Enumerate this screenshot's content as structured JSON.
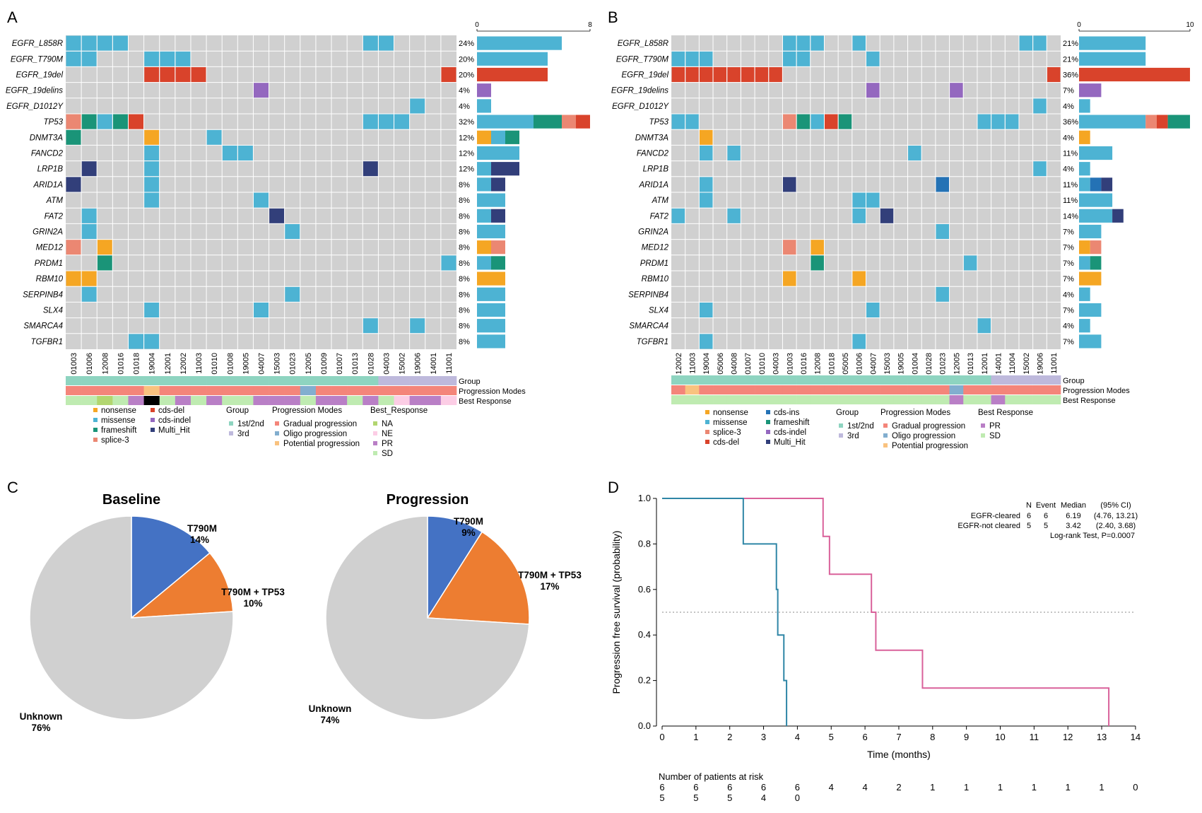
{
  "colors": {
    "bg": "#D0D0D0",
    "nonsense": "#F5A623",
    "missense": "#4DB3D3",
    "frameshift": "#1A9478",
    "splice3": "#EB8772",
    "cdsdel": "#D9432B",
    "cdsins": "#2472B5",
    "cdsindel": "#9468BF",
    "multihit": "#323F7A",
    "group12": "#8ED4C0",
    "group3": "#BEB9DC",
    "gradual": "#F4857A",
    "oligo": "#82AECF",
    "potential": "#F9C27F",
    "na": "#B2D670",
    "ne": "#FCCDE5",
    "pr": "#B97FC6",
    "sd": "#BFEBB1",
    "pie_t790m": "#4472C4",
    "pie_tp53": "#ED7D31",
    "pie_unknown": "#D0D0D0",
    "km_cleared": "#D9619A",
    "km_notcleared": "#2F86A6"
  },
  "panelA": {
    "label": "A",
    "genes": [
      "EGFR_L858R",
      "EGFR_T790M",
      "EGFR_19del",
      "EGFR_19delins",
      "EGFR_D1012Y",
      "TP53",
      "DNMT3A",
      "FANCD2",
      "LRP1B",
      "ARID1A",
      "ATM",
      "FAT2",
      "GRIN2A",
      "MED12",
      "PRDM1",
      "RBM10",
      "SERPINB4",
      "SLX4",
      "SMARCA4",
      "TGFBR1"
    ],
    "percents": [
      "24%",
      "20%",
      "20%",
      "4%",
      "4%",
      "32%",
      "12%",
      "12%",
      "12%",
      "8%",
      "8%",
      "8%",
      "8%",
      "8%",
      "8%",
      "8%",
      "8%",
      "8%",
      "8%",
      "8%"
    ],
    "samples": [
      "01003",
      "01006",
      "12008",
      "01016",
      "01018",
      "19004",
      "12001",
      "12002",
      "11003",
      "01010",
      "01008",
      "19005",
      "04007",
      "15003",
      "01023",
      "12005",
      "01009",
      "01007",
      "01013",
      "01028",
      "04003",
      "15002",
      "19006",
      "14001",
      "11001"
    ],
    "grid": [
      "mmmm...............mm....",
      "mm...mmm.................",
      ".....dddd...............d",
      "............c............",
      "......................m..",
      "sfmfd..............mmm...",
      "f....n...m...............",
      ".....m....mm.............",
      ".h...m.............h.....",
      "h....m...................",
      ".....m......m............",
      ".m...........h...........",
      ".m............m..........",
      "s.n......................",
      "..f.....................m",
      "nn.......................",
      ".m............m..........",
      ".....m......m............",
      "...................m..m..",
      "....mm..................."
    ],
    "bars": [
      [
        [
          "m",
          6
        ]
      ],
      [
        [
          "m",
          5
        ]
      ],
      [
        [
          "d",
          5
        ]
      ],
      [
        [
          "c",
          1
        ]
      ],
      [
        [
          "m",
          1
        ]
      ],
      [
        [
          "m",
          4
        ],
        [
          "f",
          2
        ],
        [
          "s",
          1
        ],
        [
          "d",
          1
        ]
      ],
      [
        [
          "n",
          1
        ],
        [
          "m",
          1
        ],
        [
          "f",
          1
        ]
      ],
      [
        [
          "m",
          3
        ]
      ],
      [
        [
          "m",
          1
        ],
        [
          "h",
          2
        ]
      ],
      [
        [
          "m",
          1
        ],
        [
          "h",
          1
        ]
      ],
      [
        [
          "m",
          2
        ]
      ],
      [
        [
          "m",
          1
        ],
        [
          "h",
          1
        ]
      ],
      [
        [
          "m",
          2
        ]
      ],
      [
        [
          "n",
          1
        ],
        [
          "s",
          1
        ]
      ],
      [
        [
          "m",
          1
        ],
        [
          "f",
          1
        ]
      ],
      [
        [
          "n",
          2
        ]
      ],
      [
        [
          "m",
          2
        ]
      ],
      [
        [
          "m",
          2
        ]
      ],
      [
        [
          "m",
          2
        ]
      ],
      [
        [
          "m",
          2
        ]
      ]
    ],
    "bar_max": 8,
    "bar_ticks": [
      "0",
      "8"
    ],
    "track_group": "1111111111111111111133333",
    "track_prog": "GGGGGPGGGGGGGGGOGGGGGGGGG",
    "track_resp": "SSASPNSPSPSSPPPSPPSPSEPPE",
    "track_labels": [
      "Group",
      "Progression Modes",
      "Best Response"
    ],
    "legend_mut": [
      [
        "nonsense",
        "n"
      ],
      [
        "missense",
        "m"
      ],
      [
        "frameshift",
        "f"
      ],
      [
        "splice-3",
        "s"
      ],
      [
        "cds-del",
        "d"
      ],
      [
        "cds-indel",
        "c"
      ],
      [
        "Multi_Hit",
        "h"
      ]
    ],
    "legend_group_title": "Group",
    "legend_group": [
      [
        "1st/2nd",
        "1"
      ],
      [
        "3rd",
        "3"
      ]
    ],
    "legend_prog_title": "Progression Modes",
    "legend_prog": [
      [
        "Gradual progression",
        "G"
      ],
      [
        "Oligo progression",
        "O"
      ],
      [
        "Potential progression",
        "P"
      ]
    ],
    "legend_resp_title": "Best_Response",
    "legend_resp": [
      [
        "NA",
        "A"
      ],
      [
        "NE",
        "E"
      ],
      [
        "PR",
        "P"
      ],
      [
        "SD",
        "S"
      ]
    ]
  },
  "panelB": {
    "label": "B",
    "genes": [
      "EGFR_L858R",
      "EGFR_T790M",
      "EGFR_19del",
      "EGFR_19delins",
      "EGFR_D1012Y",
      "TP53",
      "DNMT3A",
      "FANCD2",
      "LRP1B",
      "ARID1A",
      "ATM",
      "FAT2",
      "GRIN2A",
      "MED12",
      "PRDM1",
      "RBM10",
      "SERPINB4",
      "SLX4",
      "SMARCA4",
      "TGFBR1"
    ],
    "percents": [
      "21%",
      "21%",
      "36%",
      "7%",
      "4%",
      "36%",
      "4%",
      "11%",
      "4%",
      "11%",
      "11%",
      "14%",
      "7%",
      "7%",
      "7%",
      "7%",
      "4%",
      "7%",
      "4%",
      "7%"
    ],
    "samples": [
      "12002",
      "11003",
      "19004",
      "05006",
      "04008",
      "01007",
      "01010",
      "04003",
      "01003",
      "01016",
      "12008",
      "01018",
      "05005",
      "01006",
      "04007",
      "15003",
      "19005",
      "01004",
      "01028",
      "01023",
      "12005",
      "01013",
      "12001",
      "14001",
      "11004",
      "15002",
      "19006",
      "11001"
    ],
    "grid": [
      "........mmm..m...........mm.",
      "mmm.....mm....m.............",
      "dddddddd...................dd",
      "..............c.....c.......",
      "..........................m.",
      "mm......sfmdf.........mmm...",
      "..n.........................",
      "..m.m............m..........",
      "..........................m.",
      "..m.....h..........i........",
      "..m..........mm.............",
      "m...m........m.h............",
      "...................m........",
      "........s.n..................",
      "..........f..........m......",
      "........n....n..............",
      "...................m........",
      "..m...........m.............",
      "......................m.....",
      "..m..........m.............."
    ],
    "bars": [
      [
        [
          "m",
          6
        ]
      ],
      [
        [
          "m",
          6
        ]
      ],
      [
        [
          "d",
          10
        ]
      ],
      [
        [
          "c",
          2
        ]
      ],
      [
        [
          "m",
          1
        ]
      ],
      [
        [
          "m",
          6
        ],
        [
          "s",
          1
        ],
        [
          "d",
          1
        ],
        [
          "f",
          2
        ]
      ],
      [
        [
          "n",
          1
        ]
      ],
      [
        [
          "m",
          3
        ]
      ],
      [
        [
          "m",
          1
        ]
      ],
      [
        [
          "m",
          1
        ],
        [
          "i",
          1
        ],
        [
          "h",
          1
        ]
      ],
      [
        [
          "m",
          3
        ]
      ],
      [
        [
          "m",
          3
        ],
        [
          "h",
          1
        ]
      ],
      [
        [
          "m",
          2
        ]
      ],
      [
        [
          "n",
          1
        ],
        [
          "s",
          1
        ]
      ],
      [
        [
          "m",
          1
        ],
        [
          "f",
          1
        ]
      ],
      [
        [
          "n",
          2
        ]
      ],
      [
        [
          "m",
          1
        ]
      ],
      [
        [
          "m",
          2
        ]
      ],
      [
        [
          "m",
          1
        ]
      ],
      [
        [
          "m",
          2
        ]
      ]
    ],
    "bar_max": 10,
    "bar_ticks": [
      "0",
      "10"
    ],
    "track_group": "1111111111111111111111133333",
    "track_prog": "GPGGGGGGGGGGGGGGGGGGOGGGGGGG",
    "track_resp": "SSSSSSSSSSSSSSSSSSSSPSSPSSSS",
    "track_labels": [
      "Group",
      "Progression Modes",
      "Best  Response"
    ],
    "legend_mut": [
      [
        "nonsense",
        "n"
      ],
      [
        "missense",
        "m"
      ],
      [
        "splice-3",
        "s"
      ],
      [
        "cds-del",
        "d"
      ],
      [
        "cds-ins",
        "i"
      ],
      [
        "frameshift",
        "f"
      ],
      [
        "cds-indel",
        "c"
      ],
      [
        "Multi_Hit",
        "h"
      ]
    ],
    "legend_group_title": "Group",
    "legend_group": [
      [
        "1st/2nd",
        "1"
      ],
      [
        "3rd",
        "3"
      ]
    ],
    "legend_prog_title": "Progression Modes",
    "legend_prog": [
      [
        "Gradual progression",
        "G"
      ],
      [
        "Oligo progression",
        "O"
      ],
      [
        "Potential progression",
        "P"
      ]
    ],
    "legend_resp_title": "Best Response",
    "legend_resp": [
      [
        "PR",
        "P"
      ],
      [
        "SD",
        "S"
      ]
    ]
  },
  "panelC": {
    "label": "C",
    "pies": [
      {
        "title": "Baseline",
        "slices": [
          {
            "label": "T790M",
            "pct": "14%",
            "value": 14,
            "color": "pie_t790m"
          },
          {
            "label": "T790M + TP53",
            "pct": "10%",
            "value": 10,
            "color": "pie_tp53"
          },
          {
            "label": "Unknown",
            "pct": "76%",
            "value": 76,
            "color": "pie_unknown"
          }
        ]
      },
      {
        "title": "Progression",
        "slices": [
          {
            "label": "T790M",
            "pct": "9%",
            "value": 9,
            "color": "pie_t790m"
          },
          {
            "label": "T790M + TP53",
            "pct": "17%",
            "value": 17,
            "color": "pie_tp53"
          },
          {
            "label": "Unknown",
            "pct": "74%",
            "value": 74,
            "color": "pie_unknown"
          }
        ]
      }
    ]
  },
  "panelD": {
    "label": "D",
    "xlabel": "Time (months)",
    "ylabel": "Progression free survival (probability)",
    "header": [
      "N",
      "Event",
      "Median",
      "(95% CI)"
    ],
    "rows": [
      {
        "name": "EGFR-cleared",
        "n": "6",
        "event": "6",
        "median": "6.19",
        "ci": "(4.76, 13.21)",
        "color": "km_cleared"
      },
      {
        "name": "EGFR-not cleared",
        "n": "5",
        "event": "5",
        "median": "3.42",
        "ci": "(2.40, 3.68)",
        "color": "km_notcleared"
      }
    ],
    "test": "Log-rank Test, P=0.0007",
    "risk_title": "Number of patients at risk",
    "risk_cleared": [
      "6",
      "6",
      "6",
      "6",
      "6",
      "4",
      "4",
      "2",
      "1",
      "1",
      "1",
      "1",
      "1",
      "1",
      "0"
    ],
    "risk_notcleared": [
      "5",
      "5",
      "5",
      "4",
      "0"
    ]
  },
  "chart_data": [
    {
      "type": "heatmap",
      "title": "A",
      "genes": [
        "EGFR_L858R",
        "EGFR_T790M",
        "EGFR_19del",
        "EGFR_19delins",
        "EGFR_D1012Y",
        "TP53",
        "DNMT3A",
        "FANCD2",
        "LRP1B",
        "ARID1A",
        "ATM",
        "FAT2",
        "GRIN2A",
        "MED12",
        "PRDM1",
        "RBM10",
        "SERPINB4",
        "SLX4",
        "SMARCA4",
        "TGFBR1"
      ],
      "mutation_frequency_pct": [
        24,
        20,
        20,
        4,
        4,
        32,
        12,
        12,
        12,
        8,
        8,
        8,
        8,
        8,
        8,
        8,
        8,
        8,
        8,
        8
      ],
      "bar_axis_range": [
        0,
        8
      ]
    },
    {
      "type": "heatmap",
      "title": "B",
      "genes": [
        "EGFR_L858R",
        "EGFR_T790M",
        "EGFR_19del",
        "EGFR_19delins",
        "EGFR_D1012Y",
        "TP53",
        "DNMT3A",
        "FANCD2",
        "LRP1B",
        "ARID1A",
        "ATM",
        "FAT2",
        "GRIN2A",
        "MED12",
        "PRDM1",
        "RBM10",
        "SERPINB4",
        "SLX4",
        "SMARCA4",
        "TGFBR1"
      ],
      "mutation_frequency_pct": [
        21,
        21,
        36,
        7,
        4,
        36,
        4,
        11,
        4,
        11,
        11,
        14,
        7,
        7,
        7,
        7,
        4,
        7,
        4,
        7
      ],
      "bar_axis_range": [
        0,
        10
      ]
    },
    {
      "type": "pie",
      "title": "Baseline",
      "categories": [
        "T790M",
        "T790M + TP53",
        "Unknown"
      ],
      "values": [
        14,
        10,
        76
      ]
    },
    {
      "type": "pie",
      "title": "Progression",
      "categories": [
        "T790M",
        "T790M + TP53",
        "Unknown"
      ],
      "values": [
        9,
        17,
        74
      ]
    },
    {
      "type": "line",
      "xlabel": "Time (months)",
      "ylabel": "Progression free survival (probability)",
      "xlim": [
        0,
        14
      ],
      "ylim": [
        0,
        1
      ],
      "x_ticks": [
        "0",
        "1",
        "2",
        "3",
        "4",
        "5",
        "6",
        "7",
        "8",
        "9",
        "10",
        "11",
        "12",
        "13",
        "14"
      ],
      "y_ticks": [
        "0.0",
        "0.2",
        "0.4",
        "0.6",
        "0.8",
        "1.0"
      ],
      "reference_line_y": 0.5,
      "series": [
        {
          "name": "EGFR-cleared",
          "x": [
            0,
            4.76,
            4.95,
            6.19,
            6.32,
            7.7,
            13.21
          ],
          "y": [
            1.0,
            0.833,
            0.667,
            0.5,
            0.333,
            0.167,
            0.0
          ]
        },
        {
          "name": "EGFR-not cleared",
          "x": [
            0,
            2.4,
            3.38,
            3.42,
            3.6,
            3.68
          ],
          "y": [
            1.0,
            0.8,
            0.6,
            0.4,
            0.2,
            0.0
          ]
        }
      ]
    }
  ]
}
